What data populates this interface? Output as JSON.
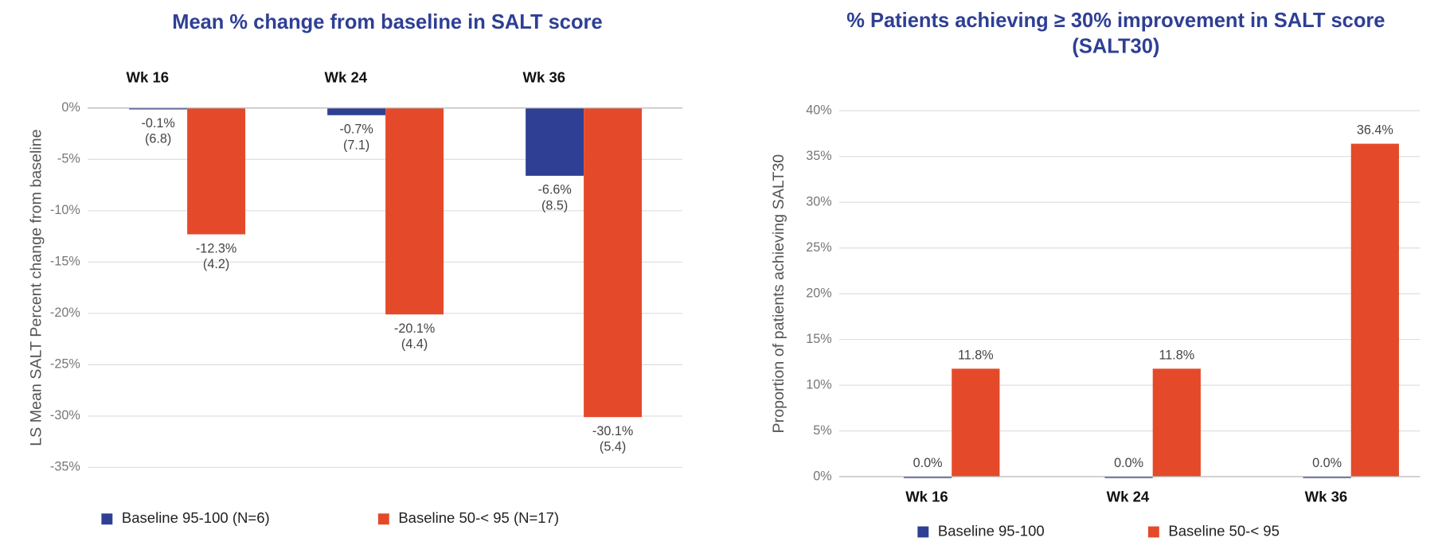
{
  "chart_data": [
    {
      "type": "bar",
      "title": "Mean % change from baseline in SALT score",
      "y_label": "LS Mean SALT Percent change from baseline",
      "categories": [
        "Wk 16",
        "Wk 24",
        "Wk 36"
      ],
      "series": [
        {
          "name": "Baseline 95-100 (N=6)",
          "color": "#2e3f94",
          "values": [
            -0.1,
            -0.7,
            -6.6
          ],
          "value_labels": [
            "-0.1%",
            "-0.7%",
            "-6.6%"
          ],
          "error_labels": [
            "(6.8)",
            "(7.1)",
            "(8.5)"
          ]
        },
        {
          "name": "Baseline 50-< 95 (N=17)",
          "color": "#e44a2a",
          "values": [
            -12.3,
            -20.1,
            -30.1
          ],
          "value_labels": [
            "-12.3%",
            "-20.1%",
            "-30.1%"
          ],
          "error_labels": [
            "(4.2)",
            "(4.4)",
            "(5.4)"
          ]
        }
      ],
      "ylim": [
        -35,
        0
      ],
      "yticks": [
        {
          "value": 0,
          "label": "0%"
        },
        {
          "value": -5,
          "label": "-5%"
        },
        {
          "value": -10,
          "label": "-10%"
        },
        {
          "value": -15,
          "label": "-15%"
        },
        {
          "value": -20,
          "label": "-20%"
        },
        {
          "value": -25,
          "label": "-25%"
        },
        {
          "value": -30,
          "label": "-30%"
        },
        {
          "value": -35,
          "label": "-35%"
        }
      ],
      "grid": true
    },
    {
      "type": "bar",
      "title": "% Patients achieving ≥ 30% improvement in SALT score (SALT30)",
      "y_label": "Proportion of patients achieving SALT30",
      "categories": [
        "Wk 16",
        "Wk 24",
        "Wk 36"
      ],
      "series": [
        {
          "name": "Baseline 95-100",
          "color": "#2e3f94",
          "values": [
            0,
            0,
            0
          ],
          "value_labels": [
            "0.0%",
            "0.0%",
            "0.0%"
          ]
        },
        {
          "name": "Baseline 50-< 95",
          "color": "#e44a2a",
          "values": [
            11.8,
            11.8,
            36.4
          ],
          "value_labels": [
            "11.8%",
            "11.8%",
            "36.4%"
          ]
        }
      ],
      "ylim": [
        0,
        40
      ],
      "yticks": [
        {
          "value": 0,
          "label": "0%"
        },
        {
          "value": 5,
          "label": "5%"
        },
        {
          "value": 10,
          "label": "10%"
        },
        {
          "value": 15,
          "label": "15%"
        },
        {
          "value": 20,
          "label": "20%"
        },
        {
          "value": 25,
          "label": "25%"
        },
        {
          "value": 30,
          "label": "30%"
        },
        {
          "value": 35,
          "label": "35%"
        },
        {
          "value": 40,
          "label": "40%"
        }
      ],
      "grid": true
    }
  ]
}
